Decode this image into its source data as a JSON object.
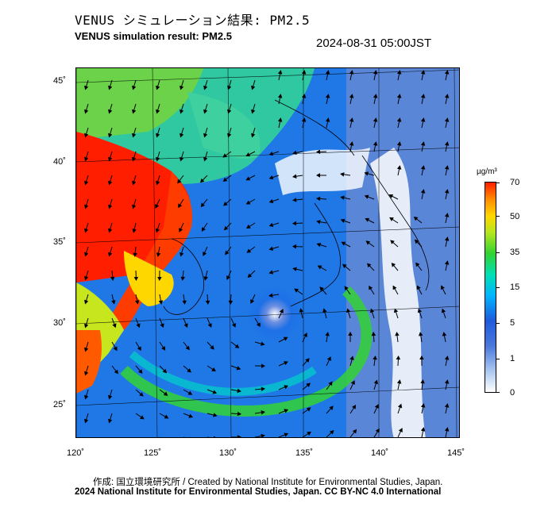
{
  "header": {
    "title_jp": "VENUS シミュレーション結果: PM2.5",
    "title_en": "VENUS simulation result: PM2.5",
    "timestamp": "2024-08-31 05:00JST"
  },
  "map": {
    "lat_labels": [
      "45˚",
      "40˚",
      "35˚",
      "30˚",
      "25˚"
    ],
    "lon_labels": [
      "120˚",
      "125˚",
      "130˚",
      "135˚",
      "140˚",
      "145˚"
    ],
    "lon_range": [
      120,
      145
    ],
    "lat_range": [
      23,
      46
    ],
    "features": [
      {
        "name": "high concentration over northeastern China",
        "level": "70+"
      },
      {
        "name": "low-pressure swirl south of Japan",
        "center_lon": 133,
        "center_lat": 30
      }
    ]
  },
  "colorbar": {
    "unit": "µg/m³",
    "ticks": [
      "70",
      "50",
      "35",
      "15",
      "5",
      "1",
      "0"
    ],
    "colors": [
      "#ff1e00",
      "#ff8c00",
      "#ffd700",
      "#32d232",
      "#00b4ff",
      "#4a78dc",
      "#ffffff"
    ]
  },
  "footer": {
    "credit": "作成: 国立環境研究所 / Created by National Institute for Environmental Studies, Japan.",
    "copyright": "2024 National Institute for Environmental Studies, Japan. CC BY-NC 4.0 International"
  }
}
